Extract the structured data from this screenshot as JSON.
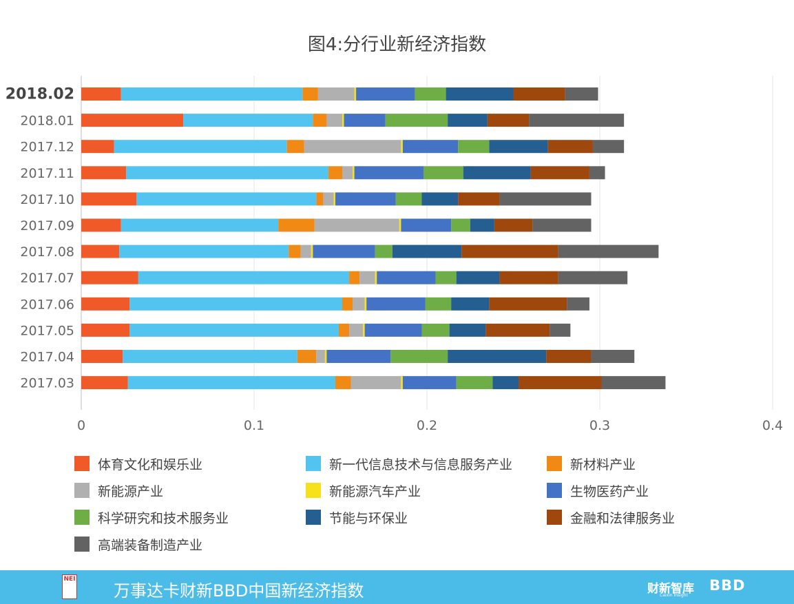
{
  "chart_data": {
    "type": "bar",
    "orientation": "horizontal",
    "stacked": true,
    "title": "图4:分行业新经济指数",
    "categories": [
      "2018.02",
      "2018.01",
      "2017.12",
      "2017.11",
      "2017.10",
      "2017.09",
      "2017.08",
      "2017.07",
      "2017.06",
      "2017.05",
      "2017.04",
      "2017.03"
    ],
    "highlight_category": "2018.02",
    "xlim": [
      0,
      0.4
    ],
    "xticks": [
      "0",
      "0.1",
      "0.2",
      "0.3",
      "0.4"
    ],
    "xtick_values": [
      0,
      0.1,
      0.2,
      0.3,
      0.4
    ],
    "grid": true,
    "legend_position": "bottom",
    "series": [
      {
        "name": "体育文化和娱乐业",
        "color": "#f05a28",
        "values": [
          0.023,
          0.059,
          0.019,
          0.026,
          0.032,
          0.023,
          0.022,
          0.033,
          0.028,
          0.028,
          0.024,
          0.027
        ]
      },
      {
        "name": "新一代信息技术与信息服务产业",
        "color": "#52c4ef",
        "values": [
          0.105,
          0.075,
          0.1,
          0.117,
          0.104,
          0.091,
          0.098,
          0.122,
          0.123,
          0.121,
          0.101,
          0.12
        ]
      },
      {
        "name": "新材料产业",
        "color": "#f08a14",
        "values": [
          0.009,
          0.008,
          0.01,
          0.008,
          0.004,
          0.021,
          0.007,
          0.006,
          0.006,
          0.006,
          0.011,
          0.009
        ]
      },
      {
        "name": "新能源产业",
        "color": "#b0b0b0",
        "values": [
          0.021,
          0.009,
          0.056,
          0.006,
          0.006,
          0.049,
          0.006,
          0.009,
          0.007,
          0.008,
          0.005,
          0.029
        ]
      },
      {
        "name": "新能源汽车产业",
        "color": "#f7e11b",
        "values": [
          0.001,
          0.001,
          0.001,
          0.001,
          0.001,
          0.001,
          0.001,
          0.001,
          0.001,
          0.001,
          0.001,
          0.001
        ]
      },
      {
        "name": "生物医药产业",
        "color": "#4472c4",
        "values": [
          0.034,
          0.024,
          0.032,
          0.04,
          0.035,
          0.029,
          0.036,
          0.034,
          0.034,
          0.033,
          0.037,
          0.031
        ]
      },
      {
        "name": "科学研究和技术服务业",
        "color": "#6fad47",
        "values": [
          0.018,
          0.036,
          0.018,
          0.023,
          0.015,
          0.011,
          0.01,
          0.012,
          0.015,
          0.016,
          0.033,
          0.021
        ]
      },
      {
        "name": "节能与环保业",
        "color": "#255f91",
        "values": [
          0.039,
          0.023,
          0.034,
          0.039,
          0.021,
          0.014,
          0.04,
          0.025,
          0.022,
          0.021,
          0.057,
          0.015
        ]
      },
      {
        "name": "金融和法律服务业",
        "color": "#9e480e",
        "values": [
          0.03,
          0.024,
          0.026,
          0.034,
          0.024,
          0.022,
          0.056,
          0.034,
          0.045,
          0.037,
          0.026,
          0.048
        ]
      },
      {
        "name": "高端装备制造产业",
        "color": "#636363",
        "values": [
          0.019,
          0.055,
          0.018,
          0.009,
          0.053,
          0.034,
          0.058,
          0.04,
          0.013,
          0.012,
          0.025,
          0.037
        ]
      }
    ]
  },
  "footer": {
    "title": "万事达卡财新BBD中国新经济指数",
    "logo_text": "NEI",
    "brand1": "财新智库",
    "brand1_sub": "Caixin Insight",
    "brand2": "BBD",
    "background": "#4bbce8"
  }
}
